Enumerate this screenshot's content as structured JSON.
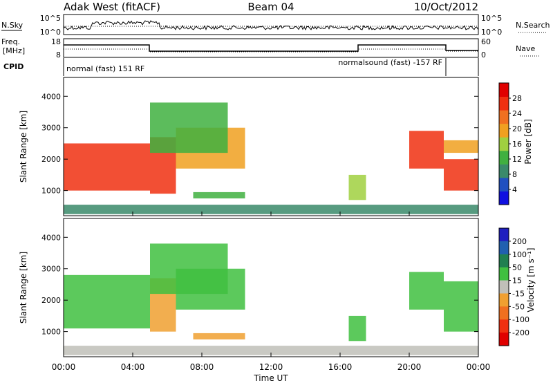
{
  "header": {
    "station": "Adak West (fitACF)",
    "beam": "Beam 04",
    "date": "10/Oct/2012"
  },
  "top_panels": {
    "nsky_label": "N.Sky",
    "nsearch_label": "N.Search",
    "nsky_ticks": [
      "10^5",
      "10^0"
    ],
    "freq_label_line1": "Freq.",
    "freq_label_line2": "[MHz]",
    "freq_ticks": [
      "18",
      "8"
    ],
    "nave_label": "Nave",
    "nave_ticks": [
      "60",
      "0"
    ],
    "cpid_label": "CPID",
    "cpid_mode1": "normal (fast) 151 RF",
    "cpid_mode2": "normalsound (fast) -157 RF"
  },
  "colors": {
    "power_scale": [
      "#1010e0",
      "#2050c0",
      "#3a8a6a",
      "#40b040",
      "#a0d040",
      "#f0a020",
      "#f07020",
      "#f03010",
      "#e00000"
    ],
    "velocity_scale": [
      "#2020c0",
      "#2060b0",
      "#208050",
      "#40c040",
      "#c0c0b8",
      "#f0a030",
      "#f07020",
      "#f03010",
      "#e00000"
    ]
  },
  "chart_data": [
    {
      "type": "heatmap",
      "panel": "power",
      "ylabel": "Slant Range [km]",
      "ylim": [
        200,
        4600
      ],
      "yticks": [
        "1000",
        "2000",
        "3000",
        "4000"
      ],
      "xlim_hours": [
        0,
        24
      ],
      "colorbar_label": "Power [dB]",
      "colorbar_ticks": [
        "4",
        "8",
        "12",
        "16",
        "20",
        "24",
        "28"
      ],
      "colorbar_range": [
        0,
        32
      ],
      "regions": [
        {
          "t0": 0.0,
          "t1": 5.0,
          "r0": 1000,
          "r1": 2500,
          "value": 26
        },
        {
          "t0": 5.0,
          "t1": 6.5,
          "r0": 900,
          "r1": 2700,
          "value": 28
        },
        {
          "t0": 6.5,
          "t1": 10.5,
          "r0": 1700,
          "r1": 3000,
          "value": 20
        },
        {
          "t0": 5.0,
          "t1": 9.5,
          "r0": 2200,
          "r1": 3800,
          "value": 14
        },
        {
          "t0": 7.5,
          "t1": 10.5,
          "r0": 750,
          "r1": 950,
          "value": 12
        },
        {
          "t0": 16.5,
          "t1": 17.5,
          "r0": 700,
          "r1": 1500,
          "value": 16
        },
        {
          "t0": 20.0,
          "t1": 22.0,
          "r0": 1700,
          "r1": 2900,
          "value": 26
        },
        {
          "t0": 22.0,
          "t1": 24.0,
          "r0": 1000,
          "r1": 2000,
          "value": 26
        },
        {
          "t0": 22.0,
          "t1": 24.0,
          "r0": 2200,
          "r1": 2600,
          "value": 18
        },
        {
          "t0": 0.0,
          "t1": 24.0,
          "r0": 250,
          "r1": 550,
          "value": 10
        }
      ]
    },
    {
      "type": "heatmap",
      "panel": "velocity",
      "ylabel": "Slant Range [km]",
      "xlabel": "Time UT",
      "ylim": [
        200,
        4600
      ],
      "yticks": [
        "1000",
        "2000",
        "3000",
        "4000"
      ],
      "xticks": [
        "00:00",
        "04:00",
        "08:00",
        "12:00",
        "16:00",
        "20:00",
        "00:00"
      ],
      "xlim_hours": [
        0,
        24
      ],
      "colorbar_label": "Velocity [m s⁻¹]",
      "colorbar_ticks": [
        "200",
        "100",
        "50",
        "15",
        "-15",
        "-50",
        "-100",
        "-200"
      ],
      "regions": [
        {
          "t0": 0.0,
          "t1": 5.0,
          "r0": 1100,
          "r1": 2800,
          "value": 0
        },
        {
          "t0": 5.0,
          "t1": 6.5,
          "r0": 1000,
          "r1": 2700,
          "value": -60
        },
        {
          "t0": 6.5,
          "t1": 10.5,
          "r0": 1700,
          "r1": 3000,
          "value": 0
        },
        {
          "t0": 5.0,
          "t1": 9.5,
          "r0": 2200,
          "r1": 3800,
          "value": 0
        },
        {
          "t0": 7.5,
          "t1": 10.5,
          "r0": 750,
          "r1": 950,
          "value": -60
        },
        {
          "t0": 16.5,
          "t1": 17.5,
          "r0": 700,
          "r1": 1500,
          "value": 0
        },
        {
          "t0": 20.0,
          "t1": 22.0,
          "r0": 1700,
          "r1": 2900,
          "value": 0
        },
        {
          "t0": 22.0,
          "t1": 24.0,
          "r0": 1000,
          "r1": 2600,
          "value": 0
        },
        {
          "t0": 0.0,
          "t1": 24.0,
          "r0": 250,
          "r1": 550,
          "value": -40
        }
      ]
    }
  ]
}
